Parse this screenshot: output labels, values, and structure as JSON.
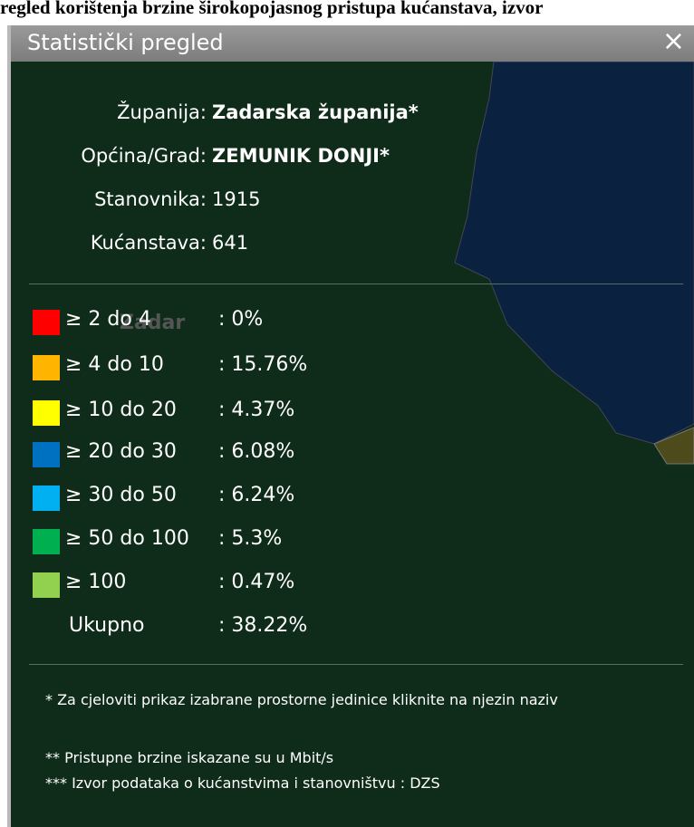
{
  "page_title": "regled korištenja brzine širokopojasnog pristupa kućanstava, izvor",
  "panel": {
    "title": "Statistički pregled",
    "close": "×"
  },
  "map": {
    "label": "Zadar"
  },
  "info": [
    {
      "label": "Županija:",
      "value": "Zadarska županija*",
      "bold": true
    },
    {
      "label": "Općina/Grad:",
      "value": "ZEMUNIK DONJI*",
      "bold": true
    },
    {
      "label": "Stanovnika:",
      "value": "1915",
      "bold": false
    },
    {
      "label": "Kućanstava:",
      "value": "641",
      "bold": false
    }
  ],
  "legend": [
    {
      "color": "#ff0000",
      "label": "≥ 2 do 4",
      "value": ": 0%"
    },
    {
      "color": "#ffb400",
      "label": "≥ 4 do 10",
      "value": ": 15.76%"
    },
    {
      "color": "#ffff00",
      "label": "≥ 10 do 20",
      "value": ": 4.37%"
    },
    {
      "color": "#0070c0",
      "label": "≥ 20 do 30",
      "value": ": 6.08%"
    },
    {
      "color": "#00b0f0",
      "label": "≥ 30 do 50",
      "value": ": 6.24%"
    },
    {
      "color": "#00b050",
      "label": "≥ 50 do 100",
      "value": ": 5.3%"
    },
    {
      "color": "#92d050",
      "label": "≥ 100",
      "value": ": 0.47%"
    }
  ],
  "total": {
    "label": "Ukupno",
    "value": ": 38.22%"
  },
  "notes": [
    "* Za cjeloviti prikaz izabrane prostorne jedinice kliknite na njezin naziv",
    "** Pristupne brzine iskazane su u Mbit/s",
    "*** Izvor podataka o kućanstvima i stanovništvu : DZS"
  ]
}
